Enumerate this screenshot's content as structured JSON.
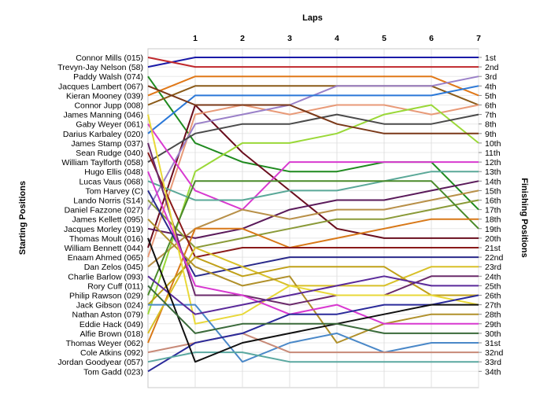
{
  "chart_data": {
    "type": "line",
    "title": "",
    "xlabel": "Laps",
    "ylabel_left": "Starting Positions",
    "ylabel_right": "Finishing Positions",
    "laps": [
      1,
      2,
      3,
      4,
      5,
      6,
      7
    ],
    "drivers": [
      "Connor Mills (015)",
      "Trevyn-Jay Nelson (58)",
      "Paddy Walsh (074)",
      "Jacques Lambert (067)",
      "Kieran Mooney (039)",
      "Connor Jupp (008)",
      "James Manning (046)",
      "Gaby Weyer (061)",
      "Darius Karbaley (020)",
      "James Stamp (037)",
      "Sean Rudge (040)",
      "William Taylforth (058)",
      "Hugo Ellis (048)",
      "Lucas Vaus (068)",
      "Tom Harvey (C)",
      "Lando Norris (S14)",
      "Daniel Fazzone (027)",
      "James Kellett (095)",
      "Jacques Morley (019)",
      "Thomas Moult (016)",
      "William Bennett (044)",
      "Enaam Ahmed (065)",
      "Dan Zelos (045)",
      "Charlie Barlow (093)",
      "Rory Cuff (011)",
      "Philip Rawson (029)",
      "Jack Gibson (024)",
      "Nathan Aston (079)",
      "Eddie Hack (049)",
      "Alfie Brown (018)",
      "Thomas Weyer (062)",
      "Cole Atkins (092)",
      "Jordan Goodyear (057)",
      "Tom Gadd (023)"
    ],
    "finishing_labels": [
      "1st",
      "2nd",
      "3rd",
      "4th",
      "5th",
      "6th",
      "7th",
      "8th",
      "9th",
      "10th",
      "11th",
      "12th",
      "13th",
      "14th",
      "15th",
      "16th",
      "17th",
      "18th",
      "19th",
      "20th",
      "21st",
      "22nd",
      "23rd",
      "24th",
      "25th",
      "26th",
      "27th",
      "28th",
      "29th",
      "30th",
      "31st",
      "32nd",
      "33rd",
      "34th"
    ],
    "ylim": [
      1,
      34
    ],
    "series": [
      {
        "color": "#1a1aa8",
        "positions": [
          2,
          1,
          1,
          1,
          1,
          1,
          1,
          1
        ]
      },
      {
        "color": "#c0282c",
        "positions": [
          1,
          2,
          2,
          2,
          2,
          2,
          2,
          2
        ]
      },
      {
        "color": "#1f8a1f",
        "positions": [
          3,
          10,
          12,
          13,
          13,
          12,
          12,
          17
        ]
      },
      {
        "color": "#8a5a18",
        "positions": [
          6,
          4,
          4,
          4,
          4,
          4,
          4,
          6
        ]
      },
      {
        "color": "#e07818",
        "positions": [
          5,
          3,
          3,
          3,
          3,
          3,
          3,
          5
        ]
      },
      {
        "color": "#6a0e1e",
        "positions": [
          21,
          6,
          11,
          15,
          19,
          20,
          20,
          20
        ]
      },
      {
        "color": "#e89a78",
        "positions": [
          22,
          7,
          6,
          7,
          6,
          6,
          7,
          6
        ]
      },
      {
        "color": "#9a80c8",
        "positions": [
          17,
          8,
          7,
          6,
          4,
          4,
          4,
          3
        ]
      },
      {
        "color": "#2a78d8",
        "positions": [
          9,
          5,
          5,
          5,
          5,
          5,
          5,
          4
        ]
      },
      {
        "color": "#9ad838",
        "positions": [
          28,
          13,
          10,
          10,
          9,
          7,
          6,
          10
        ]
      },
      {
        "color": "#4a4a4a",
        "positions": [
          12,
          9,
          8,
          8,
          7,
          8,
          8,
          7
        ]
      },
      {
        "color": "#7a3818",
        "positions": [
          4,
          6,
          6,
          6,
          8,
          9,
          9,
          9
        ]
      },
      {
        "color": "#d83ad0",
        "positions": [
          8,
          15,
          17,
          12,
          12,
          12,
          12,
          12
        ]
      },
      {
        "color": "#5aa898",
        "positions": [
          14,
          16,
          16,
          15,
          15,
          14,
          13,
          13
        ]
      },
      {
        "color": "#5a1a5a",
        "positions": [
          19,
          20,
          19,
          17,
          16,
          16,
          15,
          14
        ]
      },
      {
        "color": "#b89048",
        "positions": [
          23,
          19,
          17,
          18,
          17,
          17,
          16,
          15
        ]
      },
      {
        "color": "#8a9a38",
        "positions": [
          16,
          21,
          20,
          19,
          18,
          18,
          17,
          16
        ]
      },
      {
        "color": "#4a8a2a",
        "positions": [
          26,
          14,
          14,
          14,
          14,
          14,
          14,
          19
        ]
      },
      {
        "color": "#d87818",
        "positions": [
          31,
          19,
          19,
          21,
          20,
          19,
          18,
          18
        ]
      },
      {
        "color": "#8a1a1a",
        "positions": [
          11,
          22,
          21,
          21,
          21,
          21,
          21,
          21
        ]
      },
      {
        "color": "#2a2a8a",
        "positions": [
          15,
          24,
          23,
          22,
          22,
          22,
          22,
          22
        ]
      },
      {
        "color": "#d8c028",
        "positions": [
          30,
          21,
          23,
          25,
          25,
          25,
          23,
          23
        ]
      },
      {
        "color": "#c0a018",
        "positions": [
          27,
          22,
          24,
          23,
          23,
          23,
          26,
          26
        ]
      },
      {
        "color": "#b0902a",
        "positions": [
          18,
          23,
          25,
          24,
          31,
          29,
          28,
          28
        ]
      },
      {
        "color": "#6a2a6a",
        "positions": [
          10,
          26,
          26,
          27,
          26,
          26,
          24,
          24
        ]
      },
      {
        "color": "#e8d838",
        "positions": [
          7,
          29,
          28,
          25,
          26,
          26,
          26,
          27
        ]
      },
      {
        "color": "#4a88c8",
        "positions": [
          27,
          27,
          33,
          31,
          30,
          32,
          31,
          31
        ]
      },
      {
        "color": "#d838d0",
        "positions": [
          13,
          25,
          26,
          28,
          27,
          29,
          29,
          29
        ]
      },
      {
        "color": "#c88a78",
        "positions": [
          32,
          31,
          30,
          32,
          32,
          32,
          32,
          32
        ]
      },
      {
        "color": "#5a2a9a",
        "positions": [
          24,
          28,
          27,
          26,
          25,
          24,
          25,
          25
        ]
      },
      {
        "color": "#2a2a9a",
        "positions": [
          34,
          31,
          30,
          28,
          28,
          27,
          27,
          26
        ]
      },
      {
        "color": "#5aa8a0",
        "positions": [
          33,
          32,
          32,
          33,
          33,
          33,
          33,
          33
        ]
      },
      {
        "color": "#101010",
        "positions": [
          20,
          33,
          31,
          30,
          29,
          28,
          27,
          27
        ]
      },
      {
        "color": "#3a6a3a",
        "positions": [
          25,
          30,
          29,
          29,
          29,
          30,
          30,
          30
        ]
      }
    ]
  }
}
